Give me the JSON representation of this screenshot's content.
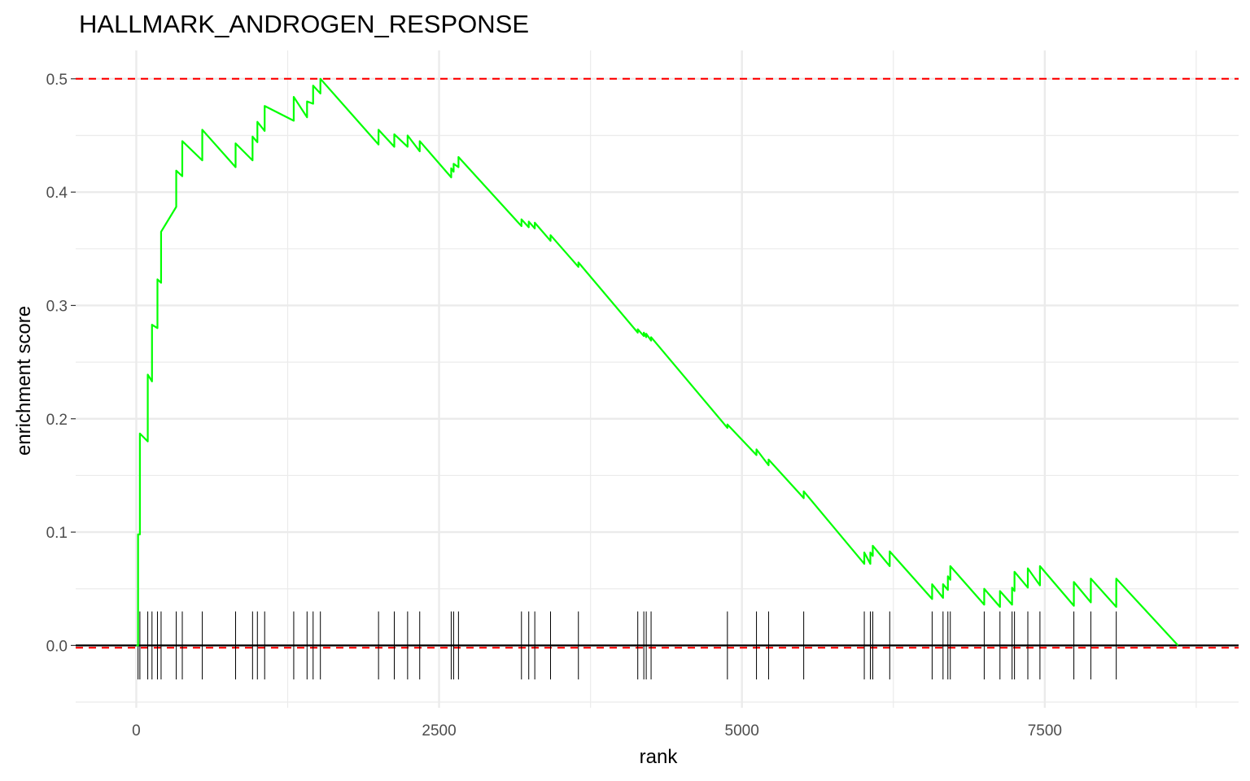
{
  "chart_data": {
    "type": "line",
    "title": "HALLMARK_ANDROGEN_RESPONSE",
    "xlabel": "rank",
    "ylabel": "enrichment score",
    "xlim": [
      -500,
      9100
    ],
    "ylim": [
      -0.055,
      0.525
    ],
    "xticks": [
      0,
      2500,
      5000,
      7500
    ],
    "yticks": [
      0.0,
      0.1,
      0.2,
      0.3,
      0.4,
      0.5
    ],
    "xtick_labels": [
      "0",
      "2500",
      "5000",
      "7500"
    ],
    "ytick_labels": [
      "0.0",
      "0.1",
      "0.2",
      "0.3",
      "0.4",
      "0.5"
    ],
    "grid": true,
    "colors": {
      "curve": "#00ff00",
      "max_line": "#ff0000",
      "min_line": "#ff0000",
      "zero_line": "#000000",
      "hits": "#000000",
      "grid": "#ebebeb"
    },
    "reference_lines": {
      "max_es": 0.5,
      "min_es": -0.002,
      "zero": 0.0
    },
    "hit_ranks": [
      15,
      30,
      95,
      130,
      175,
      205,
      330,
      380,
      545,
      820,
      960,
      1000,
      1060,
      1300,
      1410,
      1460,
      1520,
      2000,
      2130,
      2240,
      2340,
      2600,
      2620,
      2660,
      3180,
      3240,
      3290,
      3420,
      3650,
      4140,
      4190,
      4210,
      4250,
      4880,
      5120,
      5220,
      5510,
      6010,
      6060,
      6080,
      6220,
      6570,
      6660,
      6700,
      6720,
      7000,
      7130,
      7230,
      7250,
      7360,
      7460,
      7740,
      7880,
      8090
    ],
    "curve": {
      "x": [
        0,
        15,
        15,
        25,
        30,
        30,
        95,
        95,
        130,
        130,
        175,
        175,
        205,
        205,
        330,
        330,
        380,
        380,
        545,
        545,
        820,
        820,
        960,
        960,
        1000,
        1000,
        1060,
        1060,
        1300,
        1300,
        1410,
        1410,
        1460,
        1460,
        1520,
        1520,
        2000,
        2000,
        2130,
        2130,
        2240,
        2240,
        2340,
        2340,
        2600,
        2600,
        2620,
        2620,
        2660,
        2660,
        3180,
        3180,
        3240,
        3240,
        3290,
        3290,
        3420,
        3420,
        3650,
        3650,
        4140,
        4140,
        4190,
        4190,
        4210,
        4210,
        4250,
        4250,
        4880,
        4880,
        5120,
        5120,
        5220,
        5220,
        5510,
        5510,
        6010,
        6010,
        6060,
        6060,
        6080,
        6080,
        6220,
        6220,
        6570,
        6570,
        6660,
        6660,
        6700,
        6700,
        6720,
        6720,
        7000,
        7000,
        7130,
        7130,
        7230,
        7230,
        7250,
        7250,
        7360,
        7360,
        7460,
        7460,
        7740,
        7740,
        7880,
        7880,
        8090,
        8090,
        8600
      ],
      "y": [
        0.0,
        0.0,
        0.098,
        0.098,
        0.098,
        0.187,
        0.18,
        0.239,
        0.233,
        0.283,
        0.28,
        0.323,
        0.32,
        0.365,
        0.387,
        0.419,
        0.414,
        0.445,
        0.428,
        0.455,
        0.422,
        0.443,
        0.428,
        0.449,
        0.444,
        0.462,
        0.454,
        0.476,
        0.463,
        0.484,
        0.466,
        0.48,
        0.478,
        0.494,
        0.487,
        0.5,
        0.442,
        0.455,
        0.44,
        0.451,
        0.44,
        0.45,
        0.436,
        0.445,
        0.413,
        0.421,
        0.418,
        0.425,
        0.422,
        0.431,
        0.37,
        0.376,
        0.369,
        0.374,
        0.368,
        0.373,
        0.357,
        0.362,
        0.334,
        0.338,
        0.276,
        0.279,
        0.273,
        0.276,
        0.272,
        0.275,
        0.269,
        0.272,
        0.192,
        0.195,
        0.168,
        0.173,
        0.159,
        0.164,
        0.13,
        0.136,
        0.072,
        0.082,
        0.072,
        0.082,
        0.079,
        0.088,
        0.07,
        0.083,
        0.041,
        0.054,
        0.042,
        0.054,
        0.049,
        0.061,
        0.058,
        0.07,
        0.036,
        0.05,
        0.034,
        0.048,
        0.036,
        0.051,
        0.048,
        0.065,
        0.051,
        0.068,
        0.053,
        0.07,
        0.035,
        0.056,
        0.038,
        0.059,
        0.034,
        0.059,
        0.0
      ]
    }
  }
}
